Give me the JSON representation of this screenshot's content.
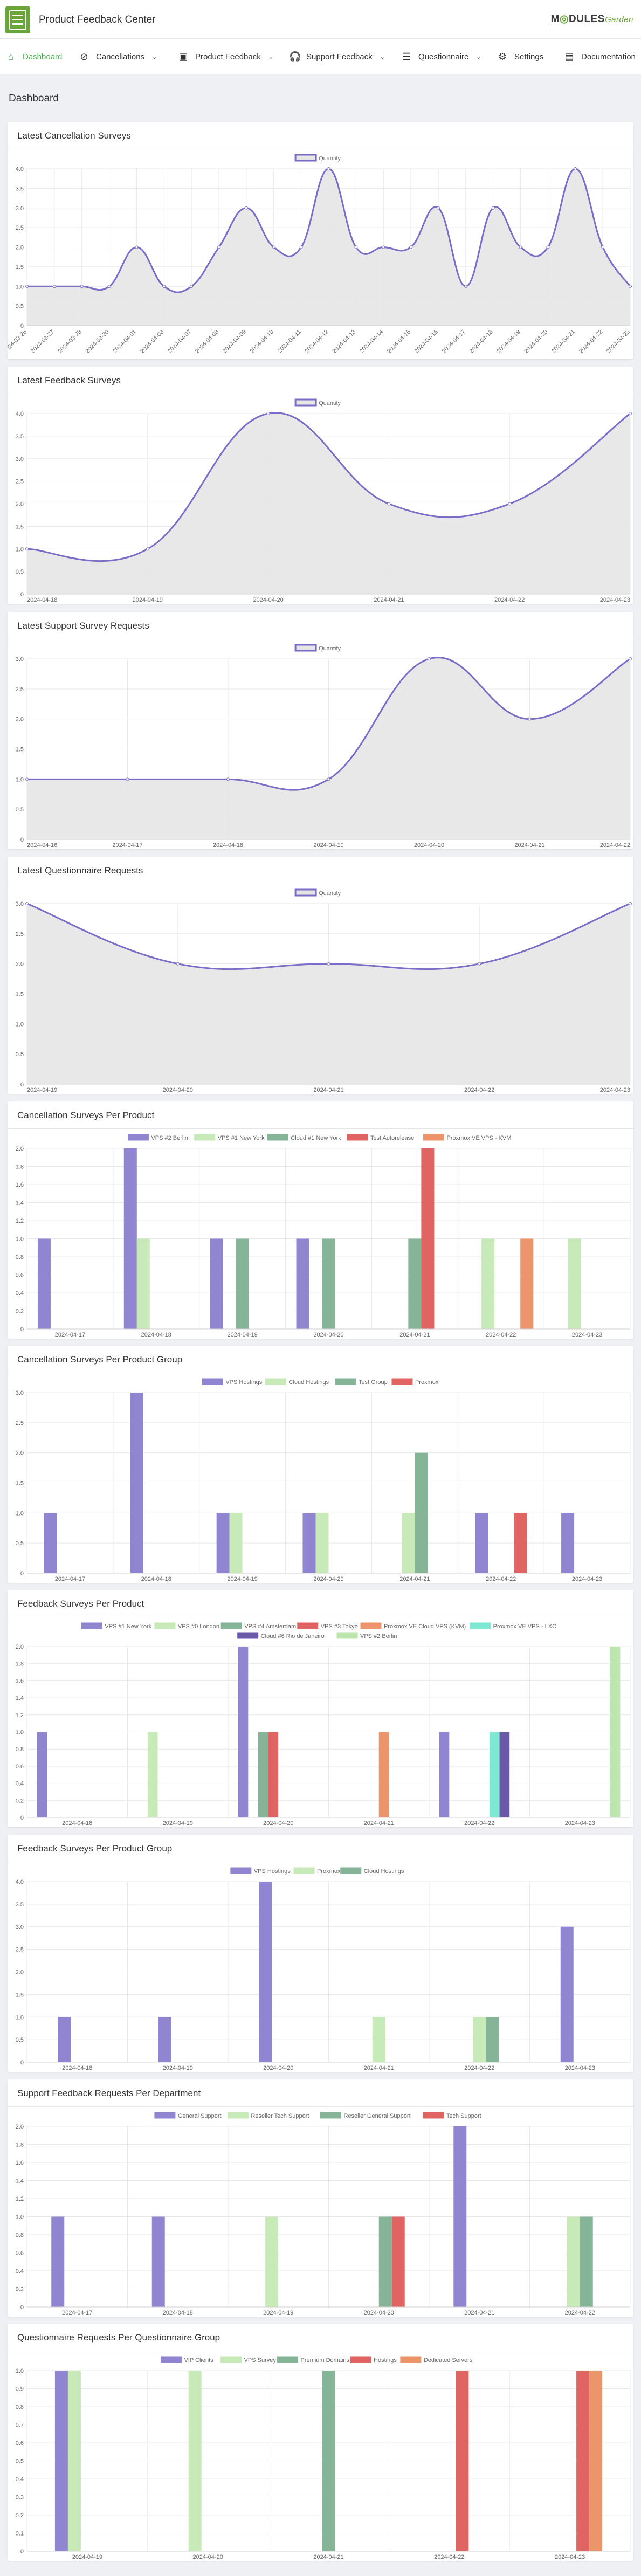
{
  "header": {
    "app_title": "Product Feedback Center",
    "brand": {
      "part1": "M",
      "part2": "DULES",
      "part3": "Garden"
    }
  },
  "nav": {
    "items": [
      {
        "label": "Dashboard",
        "icon": "home-icon",
        "active": true,
        "dropdown": false
      },
      {
        "label": "Cancellations",
        "icon": "no-entry-icon",
        "dropdown": true
      },
      {
        "label": "Product Feedback",
        "icon": "box-icon",
        "dropdown": true
      },
      {
        "label": "Support Feedback",
        "icon": "headset-icon",
        "dropdown": true
      },
      {
        "label": "Questionnaire",
        "icon": "list-icon",
        "dropdown": true
      },
      {
        "label": "Settings",
        "icon": "gear-icon",
        "dropdown": false
      },
      {
        "label": "Documentation",
        "icon": "document-icon",
        "dropdown": false
      }
    ]
  },
  "page": {
    "title": "Dashboard"
  },
  "colors": {
    "line": "#7b6cc8",
    "area": "#e5e5e5",
    "series": [
      "#8f85d1",
      "#c8eab9",
      "#86b497",
      "#e06462",
      "#ec946a",
      "#7fe8d2",
      "#6a58a8",
      "#bde6ae"
    ]
  },
  "chart_data": [
    {
      "title": "Latest Cancellation Surveys",
      "type": "line",
      "legend": [
        "Quantity"
      ],
      "ylim": [
        0,
        4
      ],
      "yticks": [
        "0",
        "0.5",
        "1.0",
        "1.5",
        "2.0",
        "2.5",
        "3.0",
        "3.5",
        "4.0"
      ],
      "categories": [
        "2024-03-26",
        "2024-03-27",
        "2024-03-28",
        "2024-03-30",
        "2024-04-01",
        "2024-04-03",
        "2024-04-07",
        "2024-04-08",
        "2024-04-09",
        "2024-04-10",
        "2024-04-11",
        "2024-04-12",
        "2024-04-13",
        "2024-04-14",
        "2024-04-15",
        "2024-04-16",
        "2024-04-17",
        "2024-04-18",
        "2024-04-19",
        "2024-04-20",
        "2024-04-21",
        "2024-04-22",
        "2024-04-23"
      ],
      "values": [
        1,
        1,
        1,
        1,
        2,
        1,
        1,
        2,
        3,
        2,
        2,
        4,
        2,
        2,
        2,
        3,
        1,
        3,
        2,
        2,
        4,
        2,
        1
      ]
    },
    {
      "title": "Latest Feedback Surveys",
      "type": "line",
      "legend": [
        "Quantity"
      ],
      "ylim": [
        0,
        4
      ],
      "yticks": [
        "0",
        "0.5",
        "1.0",
        "1.5",
        "2.0",
        "2.5",
        "3.0",
        "3.5",
        "4.0"
      ],
      "categories": [
        "2024-04-18",
        "2024-04-19",
        "2024-04-20",
        "2024-04-21",
        "2024-04-22",
        "2024-04-23"
      ],
      "values": [
        1,
        1,
        4,
        2,
        2,
        4
      ]
    },
    {
      "title": "Latest Support Survey Requests",
      "type": "line",
      "legend": [
        "Quantity"
      ],
      "ylim": [
        0,
        3
      ],
      "yticks": [
        "0",
        "0.5",
        "1.0",
        "1.5",
        "2.0",
        "2.5",
        "3.0"
      ],
      "categories": [
        "2024-04-16",
        "2024-04-17",
        "2024-04-18",
        "2024-04-19",
        "2024-04-20",
        "2024-04-21",
        "2024-04-22"
      ],
      "values": [
        1,
        1,
        1,
        1,
        3,
        2,
        3
      ]
    },
    {
      "title": "Latest Questionnaire Requests",
      "type": "line",
      "legend": [
        "Quantity"
      ],
      "ylim": [
        0,
        3
      ],
      "yticks": [
        "0",
        "0.5",
        "1.0",
        "1.5",
        "2.0",
        "2.5",
        "3.0"
      ],
      "categories": [
        "2024-04-19",
        "2024-04-20",
        "2024-04-21",
        "2024-04-22",
        "2024-04-23"
      ],
      "values": [
        3,
        2,
        2,
        2,
        3
      ]
    },
    {
      "title": "Cancellation Surveys Per Product",
      "type": "bar",
      "legend": [
        "VPS #2 Berlin",
        "VPS #1 New York",
        "Cloud #1 New York",
        "Test Autorelease",
        "Proxmox VE VPS - KVM"
      ],
      "ylim": [
        0,
        2
      ],
      "yticks": [
        "0",
        "0.2",
        "0.4",
        "0.6",
        "0.8",
        "1.0",
        "1.2",
        "1.4",
        "1.6",
        "1.8",
        "2.0"
      ],
      "categories": [
        "2024-04-17",
        "2024-04-18",
        "2024-04-19",
        "2024-04-20",
        "2024-04-21",
        "2024-04-22",
        "2024-04-23"
      ],
      "series": [
        {
          "name": "VPS #2 Berlin",
          "values": [
            1,
            2,
            1,
            1,
            0,
            0,
            0
          ]
        },
        {
          "name": "VPS #1 New York",
          "values": [
            0,
            1,
            0,
            0,
            0,
            1,
            1
          ]
        },
        {
          "name": "Cloud #1 New York",
          "values": [
            0,
            0,
            1,
            1,
            1,
            0,
            0
          ]
        },
        {
          "name": "Test Autorelease",
          "values": [
            0,
            0,
            0,
            0,
            2,
            0,
            0
          ]
        },
        {
          "name": "Proxmox VE VPS - KVM",
          "values": [
            0,
            0,
            0,
            0,
            0,
            1,
            0
          ]
        }
      ]
    },
    {
      "title": "Cancellation Surveys Per Product Group",
      "type": "bar",
      "legend": [
        "VPS Hostings",
        "Cloud Hostings",
        "Test Group",
        "Proxmox"
      ],
      "ylim": [
        0,
        3
      ],
      "yticks": [
        "0",
        "0.5",
        "1.0",
        "1.5",
        "2.0",
        "2.5",
        "3.0"
      ],
      "categories": [
        "2024-04-17",
        "2024-04-18",
        "2024-04-19",
        "2024-04-20",
        "2024-04-21",
        "2024-04-22",
        "2024-04-23"
      ],
      "series": [
        {
          "name": "VPS Hostings",
          "values": [
            1,
            3,
            1,
            1,
            0,
            1,
            1
          ]
        },
        {
          "name": "Cloud Hostings",
          "values": [
            0,
            0,
            1,
            1,
            1,
            0,
            0
          ]
        },
        {
          "name": "Test Group",
          "values": [
            0,
            0,
            0,
            0,
            2,
            0,
            0
          ]
        },
        {
          "name": "Proxmox",
          "values": [
            0,
            0,
            0,
            0,
            0,
            1,
            0
          ]
        }
      ]
    },
    {
      "title": "Feedback Surveys Per Product",
      "type": "bar",
      "legend": [
        "VPS #1 New York",
        "VPS #0 London",
        "VPS #4 Amsterdam",
        "VPS #3 Tokyo",
        "Proxmox VE Cloud VPS (KVM)",
        "Proxmox VE VPS - LXC",
        "Cloud #6 Rio de Janeiro",
        "VPS #2 Berlin"
      ],
      "ylim": [
        0,
        2
      ],
      "yticks": [
        "0",
        "0.2",
        "0.4",
        "0.6",
        "0.8",
        "1.0",
        "1.2",
        "1.4",
        "1.6",
        "1.8",
        "2.0"
      ],
      "categories": [
        "2024-04-18",
        "2024-04-19",
        "2024-04-20",
        "2024-04-21",
        "2024-04-22",
        "2024-04-23"
      ],
      "series": [
        {
          "name": "VPS #1 New York",
          "values": [
            1,
            0,
            2,
            0,
            1,
            0
          ]
        },
        {
          "name": "VPS #0 London",
          "values": [
            0,
            1,
            0,
            0,
            0,
            0
          ]
        },
        {
          "name": "VPS #4 Amsterdam",
          "values": [
            0,
            0,
            1,
            0,
            0,
            0
          ]
        },
        {
          "name": "VPS #3 Tokyo",
          "values": [
            0,
            0,
            1,
            0,
            0,
            0
          ]
        },
        {
          "name": "Proxmox VE Cloud VPS (KVM)",
          "values": [
            0,
            0,
            0,
            1,
            0,
            0
          ]
        },
        {
          "name": "Proxmox VE VPS - LXC",
          "values": [
            0,
            0,
            0,
            0,
            1,
            0
          ]
        },
        {
          "name": "Cloud #6 Rio de Janeiro",
          "values": [
            0,
            0,
            0,
            0,
            1,
            0
          ]
        },
        {
          "name": "VPS #2 Berlin",
          "values": [
            0,
            0,
            0,
            0,
            0,
            2
          ]
        }
      ]
    },
    {
      "title": "Feedback Surveys Per Product Group",
      "type": "bar",
      "legend": [
        "VPS Hostings",
        "Proxmox",
        "Cloud Hostings"
      ],
      "ylim": [
        0,
        4
      ],
      "yticks": [
        "0",
        "0.5",
        "1.0",
        "1.5",
        "2.0",
        "2.5",
        "3.0",
        "3.5",
        "4.0"
      ],
      "categories": [
        "2024-04-18",
        "2024-04-19",
        "2024-04-20",
        "2024-04-21",
        "2024-04-22",
        "2024-04-23"
      ],
      "series": [
        {
          "name": "VPS Hostings",
          "values": [
            1,
            1,
            4,
            0,
            0,
            3
          ]
        },
        {
          "name": "Proxmox",
          "values": [
            0,
            0,
            0,
            1,
            1,
            0
          ]
        },
        {
          "name": "Cloud Hostings",
          "values": [
            0,
            0,
            0,
            0,
            1,
            0
          ]
        }
      ]
    },
    {
      "title": "Support Feedback Requests Per Department",
      "type": "bar",
      "legend": [
        "General Support",
        "Reseller Tech Support",
        "Reseller General Support",
        "Tech Support"
      ],
      "ylim": [
        0,
        2
      ],
      "yticks": [
        "0",
        "0.2",
        "0.4",
        "0.6",
        "0.8",
        "1.0",
        "1.2",
        "1.4",
        "1.6",
        "1.8",
        "2.0"
      ],
      "categories": [
        "2024-04-17",
        "2024-04-18",
        "2024-04-19",
        "2024-04-20",
        "2024-04-21",
        "2024-04-22"
      ],
      "series": [
        {
          "name": "General Support",
          "values": [
            1,
            1,
            0,
            0,
            2,
            0
          ]
        },
        {
          "name": "Reseller Tech Support",
          "values": [
            0,
            0,
            1,
            0,
            0,
            1
          ]
        },
        {
          "name": "Reseller General Support",
          "values": [
            0,
            0,
            0,
            1,
            0,
            1
          ]
        },
        {
          "name": "Tech Support",
          "values": [
            0,
            0,
            0,
            1,
            0,
            0
          ]
        }
      ]
    },
    {
      "title": "Questionnaire Requests Per Questionnaire Group",
      "type": "bar",
      "legend": [
        "VIP Clients",
        "VPS Survey",
        "Premium Domains",
        "Hostings",
        "Dedicated Servers"
      ],
      "ylim": [
        0,
        1
      ],
      "yticks": [
        "0",
        "0.1",
        "0.2",
        "0.3",
        "0.4",
        "0.5",
        "0.6",
        "0.7",
        "0.8",
        "0.9",
        "1.0"
      ],
      "categories": [
        "2024-04-19",
        "2024-04-20",
        "2024-04-21",
        "2024-04-22",
        "2024-04-23"
      ],
      "series": [
        {
          "name": "VIP Clients",
          "values": [
            1,
            0,
            0,
            0,
            0
          ]
        },
        {
          "name": "VPS Survey",
          "values": [
            1,
            1,
            0,
            0,
            0
          ]
        },
        {
          "name": "Premium Domains",
          "values": [
            0,
            0,
            1,
            0,
            0
          ]
        },
        {
          "name": "Hostings",
          "values": [
            0,
            0,
            0,
            1,
            1
          ]
        },
        {
          "name": "Dedicated Servers",
          "values": [
            0,
            0,
            0,
            0,
            1
          ]
        }
      ]
    }
  ]
}
